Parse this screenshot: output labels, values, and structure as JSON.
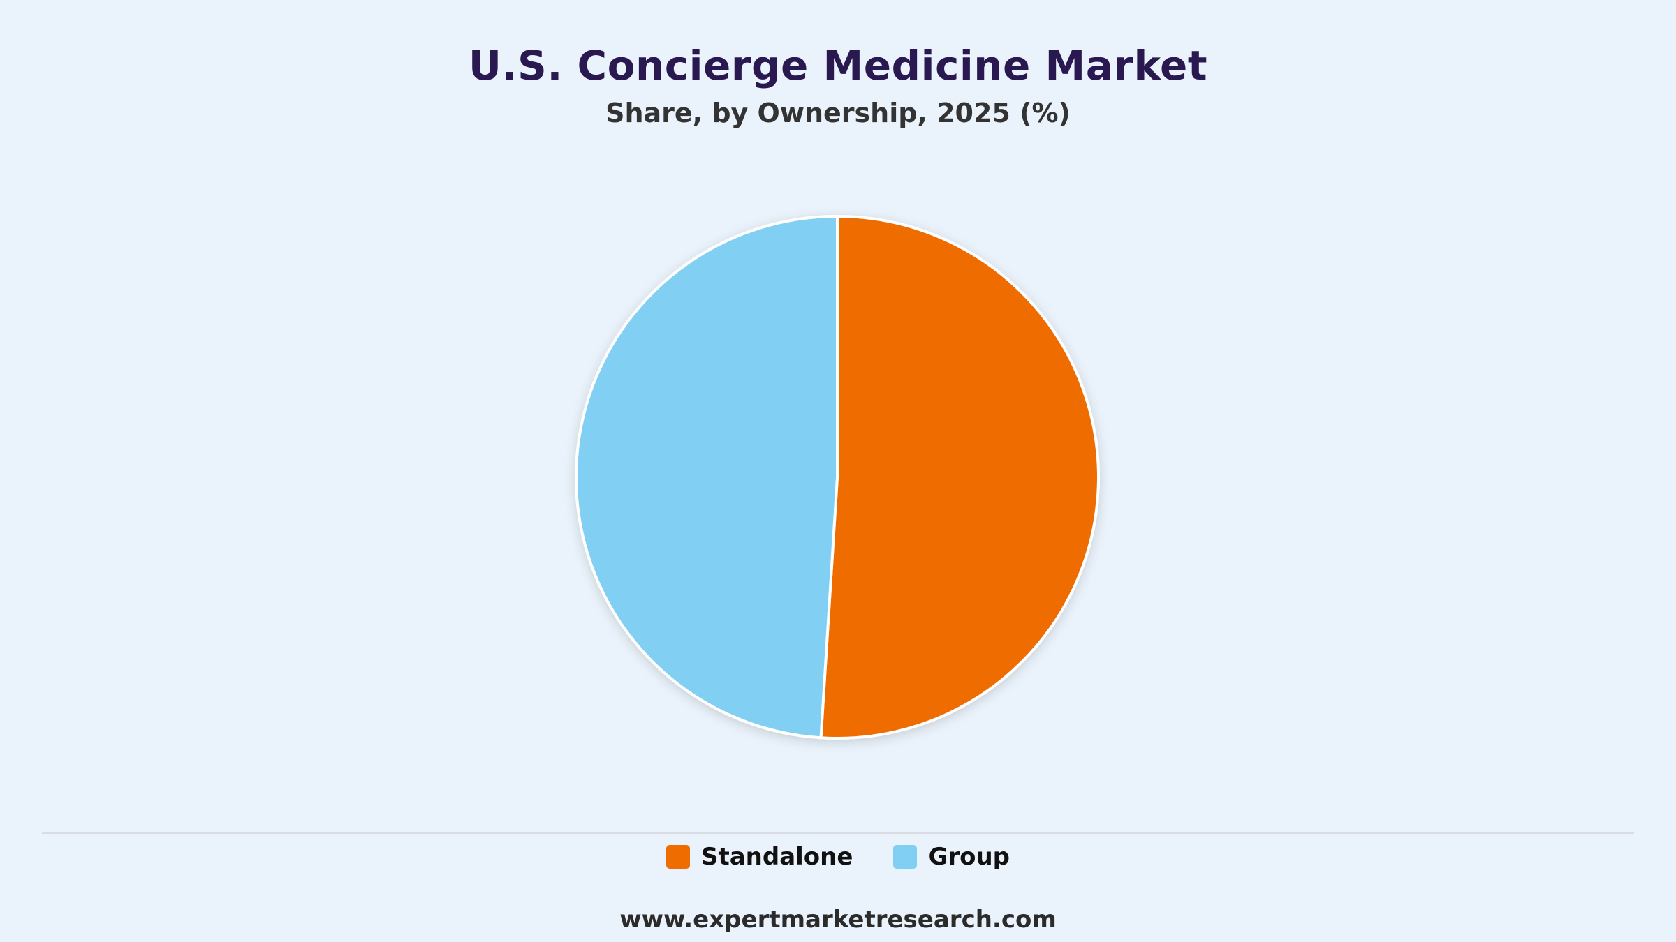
{
  "chart_data": {
    "type": "pie",
    "title": "U.S. Concierge Medicine Market",
    "subtitle": "Share, by Ownership, 2025 (%)",
    "slices": [
      {
        "name": "Standalone",
        "value": 51,
        "color": "#ef6c00"
      },
      {
        "name": "Group",
        "value": 49,
        "color": "#81cff2"
      }
    ],
    "legend_position": "bottom"
  },
  "footer": {
    "source": "www.expertmarketresearch.com"
  }
}
